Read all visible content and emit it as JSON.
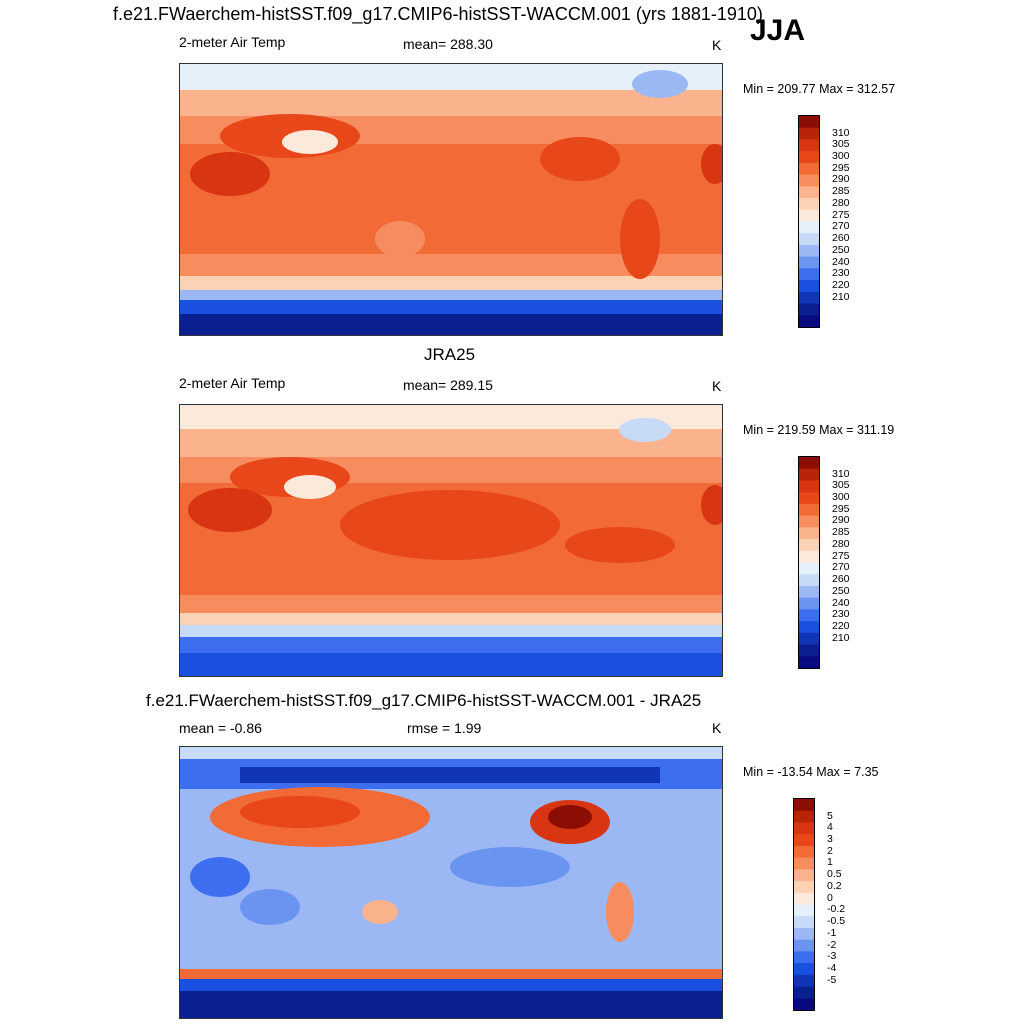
{
  "figure": {
    "title": "f.e21.FWaerchem-histSST.f09_g17.CMIP6-histSST-WACCM.001 (yrs 1881-1910)",
    "season": "JJA"
  },
  "panels": [
    {
      "id": "model",
      "variable": "2-meter Air Temp",
      "stat": "mean= 288.30",
      "units": "K",
      "minmax": "Min = 209.77 Max = 312.57",
      "colors": [
        "#0a0a80",
        "#0a2090",
        "#1235b8",
        "#1a50e0",
        "#3d6ef0",
        "#6a94f0",
        "#9bb8f5",
        "#c7daf8",
        "#e6f0fb",
        "#fbe9dc",
        "#fcd2b4",
        "#fab38c",
        "#f78c5e",
        "#f26a36",
        "#e8471a",
        "#d83512",
        "#b82408",
        "#8c0d03"
      ],
      "ticks": [
        "310",
        "305",
        "300",
        "295",
        "290",
        "285",
        "280",
        "275",
        "270",
        "260",
        "250",
        "240",
        "230",
        "220",
        "210"
      ]
    },
    {
      "id": "obs",
      "title": "JRA25",
      "variable": "2-meter Air Temp",
      "stat": "mean= 289.15",
      "units": "K",
      "minmax": "Min = 219.59 Max = 311.19",
      "colors": [
        "#0a0a80",
        "#0a2090",
        "#1235b8",
        "#1a50e0",
        "#3d6ef0",
        "#6a94f0",
        "#9bb8f5",
        "#c7daf8",
        "#e6f0fb",
        "#fbe9dc",
        "#fcd2b4",
        "#fab38c",
        "#f78c5e",
        "#f26a36",
        "#e8471a",
        "#d83512",
        "#b82408",
        "#8c0d03"
      ],
      "ticks": [
        "310",
        "305",
        "300",
        "295",
        "290",
        "285",
        "280",
        "275",
        "270",
        "260",
        "250",
        "240",
        "230",
        "220",
        "210"
      ]
    },
    {
      "id": "diff",
      "title": "f.e21.FWaerchem-histSST.f09_g17.CMIP6-histSST-WACCM.001 - JRA25",
      "stat_left": "mean =  -0.86",
      "stat": "rmse =   1.99",
      "units": "K",
      "minmax": "Min = -13.54 Max =   7.35",
      "colors": [
        "#0a0a80",
        "#0a2090",
        "#1235b8",
        "#1a50e0",
        "#3d6ef0",
        "#6a94f0",
        "#9bb8f5",
        "#c7daf8",
        "#e6f0fb",
        "#fbe9dc",
        "#fcd2b4",
        "#fab38c",
        "#f78c5e",
        "#f26a36",
        "#e8471a",
        "#d83512",
        "#b82408",
        "#8c0d03"
      ],
      "ticks": [
        "5",
        "4",
        "3",
        "2",
        "1",
        "0.5",
        "0.2",
        "0",
        "-0.2",
        "-0.5",
        "-1",
        "-2",
        "-3",
        "-4",
        "-5"
      ]
    }
  ],
  "palette": {
    "land_warm": "#e8471a",
    "tropics": "#f26a36",
    "polar": "#1235b8",
    "cold_deep": "#0a0a80",
    "diff_bg": "#6a94f0",
    "diff_warm": "#d83512"
  }
}
